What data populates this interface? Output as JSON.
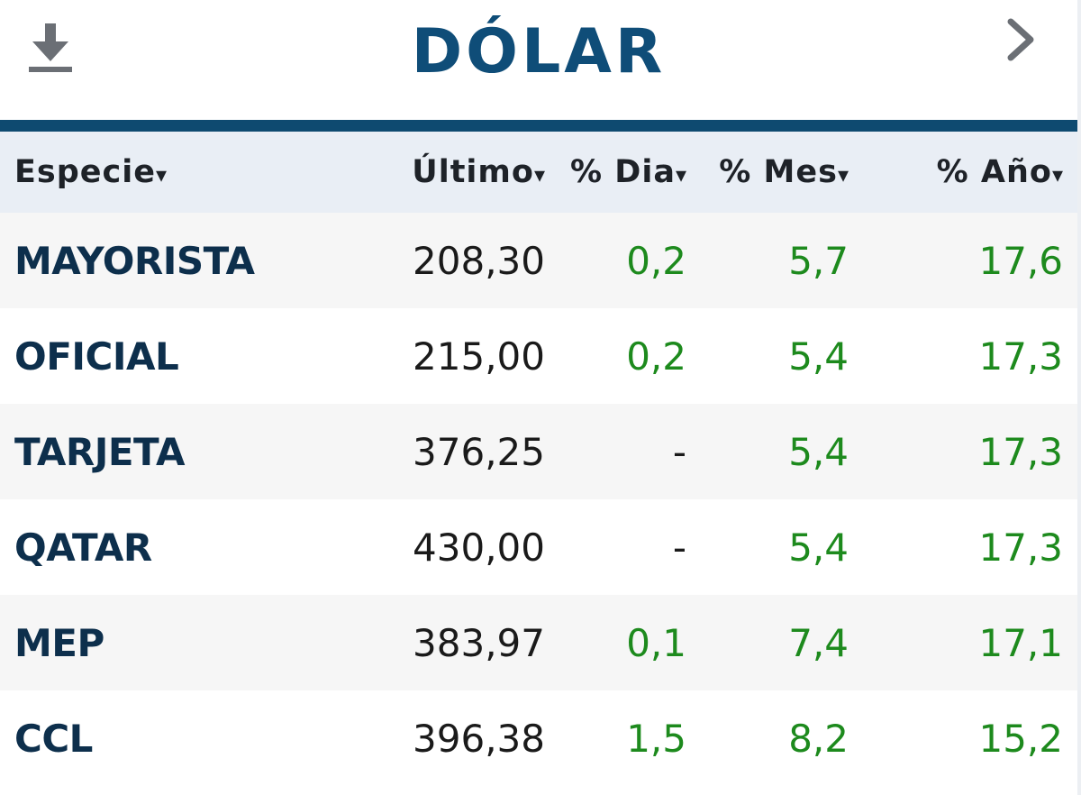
{
  "header": {
    "title": "DÓLAR",
    "download_icon": "download-icon",
    "next_icon": "chevron-right-icon"
  },
  "columns": [
    {
      "label": "Especie",
      "sort_icon": "▾"
    },
    {
      "label": "Último",
      "sort_icon": "▾"
    },
    {
      "label": "% Dia",
      "sort_icon": "▾"
    },
    {
      "label": "% Mes",
      "sort_icon": "▾"
    },
    {
      "label": "% Año",
      "sort_icon": "▾"
    }
  ],
  "rows": [
    {
      "especie": "MAYORISTA",
      "ultimo": "208,30",
      "dia": "0,2",
      "mes": "5,7",
      "anio": "17,6"
    },
    {
      "especie": "OFICIAL",
      "ultimo": "215,00",
      "dia": "0,2",
      "mes": "5,4",
      "anio": "17,3"
    },
    {
      "especie": "TARJETA",
      "ultimo": "376,25",
      "dia": "-",
      "mes": "5,4",
      "anio": "17,3"
    },
    {
      "especie": "QATAR",
      "ultimo": "430,00",
      "dia": "-",
      "mes": "5,4",
      "anio": "17,3"
    },
    {
      "especie": "MEP",
      "ultimo": "383,97",
      "dia": "0,1",
      "mes": "7,4",
      "anio": "17,1"
    },
    {
      "especie": "CCL",
      "ultimo": "396,38",
      "dia": "1,5",
      "mes": "8,2",
      "anio": "15,2"
    }
  ],
  "colors": {
    "title": "#0f4d78",
    "rule": "#0e4a70",
    "header_bg": "#e9eef5",
    "positive": "#1d8a1d",
    "name": "#0d2f4c"
  }
}
